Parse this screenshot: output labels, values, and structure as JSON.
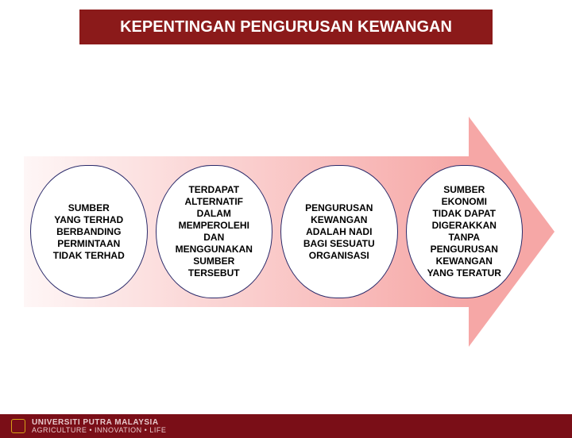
{
  "colors": {
    "title_bg": "#8b1a1a",
    "title_fg": "#ffffff",
    "arrow_left": "#fef6f6",
    "arrow_right": "#f6a7a6",
    "pill_bg": "#ffffff",
    "pill_border": "#2a2a6a",
    "pill_fg": "#000000",
    "footer_bg": "#7a0e17",
    "footer_fg": "#e8c9cc",
    "footer_logo": "#d4a017"
  },
  "title": "KEPENTINGAN PENGURUSAN KEWANGAN",
  "pills": [
    "SUMBER\nYANG TERHAD\nBERBANDING\nPERMINTAAN\nTIDAK TERHAD",
    "TERDAPAT\nALTERNATIF\nDALAM\nMEMPEROLEHI\nDAN\nMENGGUNAKAN\nSUMBER\nTERSEBUT",
    "PENGURUSAN\nKEWANGAN\nADALAH NADI\nBAGI SESUATU\nORGANISASI",
    "SUMBER\nEKONOMI\nTIDAK DAPAT\nDIGERAKKAN\nTANPA\nPENGURUSAN\nKEWANGAN\nYANG TERATUR"
  ],
  "footer": {
    "line1": "UNIVERSITI PUTRA MALAYSIA",
    "line2": "AGRICULTURE • INNOVATION • LIFE"
  },
  "typography": {
    "title_fontsize": 20,
    "pill_fontsize": 12,
    "footer_fontsize": 9
  },
  "layout": {
    "type": "infographic",
    "arrow_direction": "right",
    "pill_count": 4
  }
}
